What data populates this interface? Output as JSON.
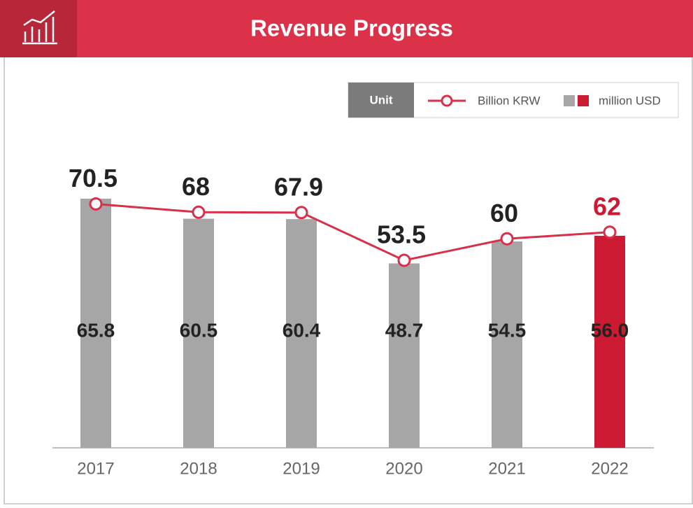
{
  "chart_data": {
    "type": "bar-line",
    "title": "Revenue Progress",
    "legend_title": "Unit",
    "categories": [
      "2017",
      "2018",
      "2019",
      "2020",
      "2021",
      "2022"
    ],
    "series": [
      {
        "name": "million USD",
        "type": "bar",
        "color": "#a6a6a6",
        "colors": [
          "#a6a6a6",
          "#a6a6a6",
          "#a6a6a6",
          "#a6a6a6",
          "#a6a6a6",
          "#cc1a33"
        ],
        "values": [
          65.8,
          60.5,
          60.4,
          48.7,
          54.5,
          56.0
        ],
        "value_labels": [
          "65.8",
          "60.5",
          "60.4",
          "48.7",
          "54.5",
          "56.0"
        ]
      },
      {
        "name": "Billion KRW",
        "type": "line",
        "axis": "y2",
        "color": "#d9304a",
        "colors": [
          "#222222",
          "#222222",
          "#222222",
          "#222222",
          "#222222",
          "#cc1a33"
        ],
        "values": [
          70.5,
          68,
          67.9,
          53.5,
          60,
          62
        ]
      }
    ],
    "ylim": [
      0,
      85
    ],
    "y2lim": [
      -3,
      94
    ]
  }
}
